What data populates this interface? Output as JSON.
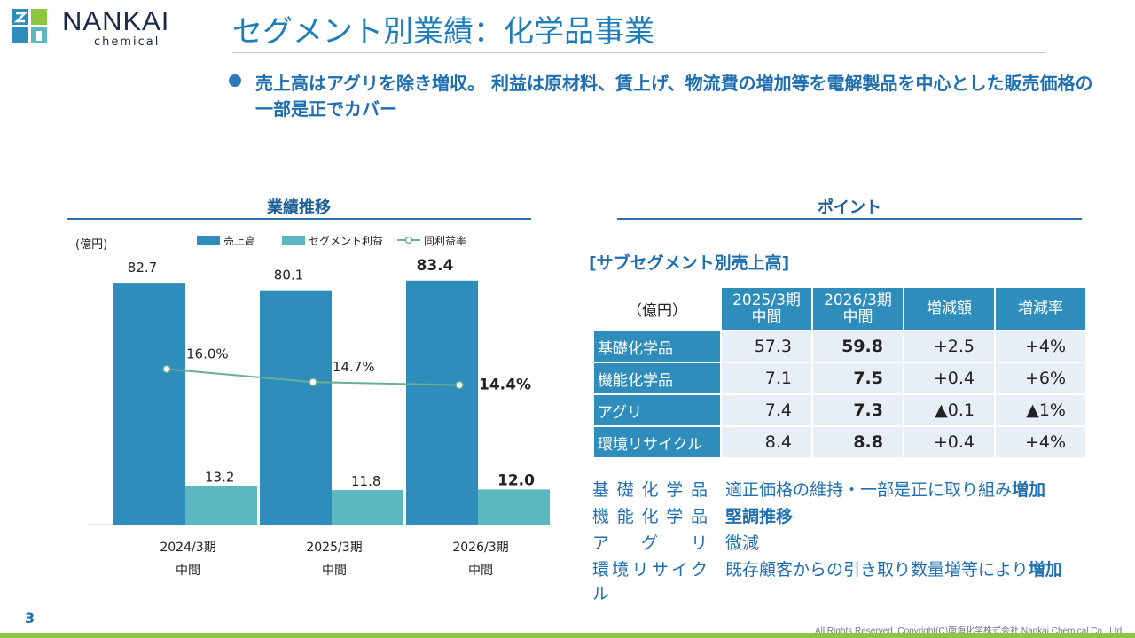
{
  "brand": {
    "name": "NANKAI",
    "sub": "chemical"
  },
  "title": "セグメント別業績：化学品事業",
  "bullet": "売上高はアグリを除き増収。 利益は原材料、賃上げ、物流費の増加等を電解製品を中心とした販売価格の一部是正でカバー",
  "sections": {
    "left_title": "業績推移",
    "right_title": "ポイント"
  },
  "chart_data": {
    "type": "bar",
    "unit_label": "(億円)",
    "legend": [
      "売上高",
      "セグメント利益",
      "同利益率"
    ],
    "categories": [
      [
        "2024/3期",
        "中間"
      ],
      [
        "2025/3期",
        "中間"
      ],
      [
        "2026/3期",
        "中間"
      ]
    ],
    "series": [
      {
        "name": "売上高",
        "values": [
          82.7,
          80.1,
          83.4
        ],
        "labels": [
          "82.7",
          "80.1",
          "83.4"
        ],
        "color": "#2f8dbb"
      },
      {
        "name": "セグメント利益",
        "values": [
          13.2,
          11.8,
          12.0
        ],
        "labels": [
          "13.2",
          "11.8",
          "12.0"
        ],
        "color": "#5bb8c0"
      },
      {
        "name": "同利益率",
        "values": [
          16.0,
          14.7,
          14.4
        ],
        "labels": [
          "16.0%",
          "14.7%",
          "14.4%"
        ],
        "color": "#6aae95"
      }
    ],
    "highlight_last": true
  },
  "table": {
    "title": "[サブセグメント別売上高]",
    "unit": "（億円）",
    "headers": [
      [
        "2025/3期",
        "中間"
      ],
      [
        "2026/3期",
        "中間"
      ],
      [
        "増減額"
      ],
      [
        "増減率"
      ]
    ],
    "rows": [
      {
        "label": "基礎化学品",
        "cells": [
          "57.3",
          "59.8",
          "+2.5",
          "+4%"
        ]
      },
      {
        "label": "機能化学品",
        "cells": [
          "7.1",
          "7.5",
          "+0.4",
          "+6%"
        ]
      },
      {
        "label": "アグリ",
        "cells": [
          "7.4",
          "7.3",
          "▲0.1",
          "▲1%"
        ]
      },
      {
        "label": "環境リサイクル",
        "cells": [
          "8.4",
          "8.8",
          "+0.4",
          "+4%"
        ]
      }
    ]
  },
  "notes": [
    {
      "label": "基礎化学品",
      "text": "適正価格の維持・一部是正に取り組み",
      "strong": "増加"
    },
    {
      "label": "機能化学品",
      "text": "",
      "strong": "堅調推移"
    },
    {
      "label": "アグリ",
      "text": "微減",
      "strong": ""
    },
    {
      "label": "環境リサイクル",
      "text": "既存顧客からの引き取り数量増等により",
      "strong": "増加"
    }
  ],
  "footer": {
    "page": "3",
    "copyright": "All Rights Reserved. Copyright(C)南海化学株式会社 Nankai Chemical Co., Ltd."
  },
  "colors": {
    "accent": "#1f7db8",
    "bar_sales": "#2f8dbb",
    "bar_profit": "#5bb8c0",
    "line": "#6aae95",
    "footer": "#8dc63f"
  }
}
